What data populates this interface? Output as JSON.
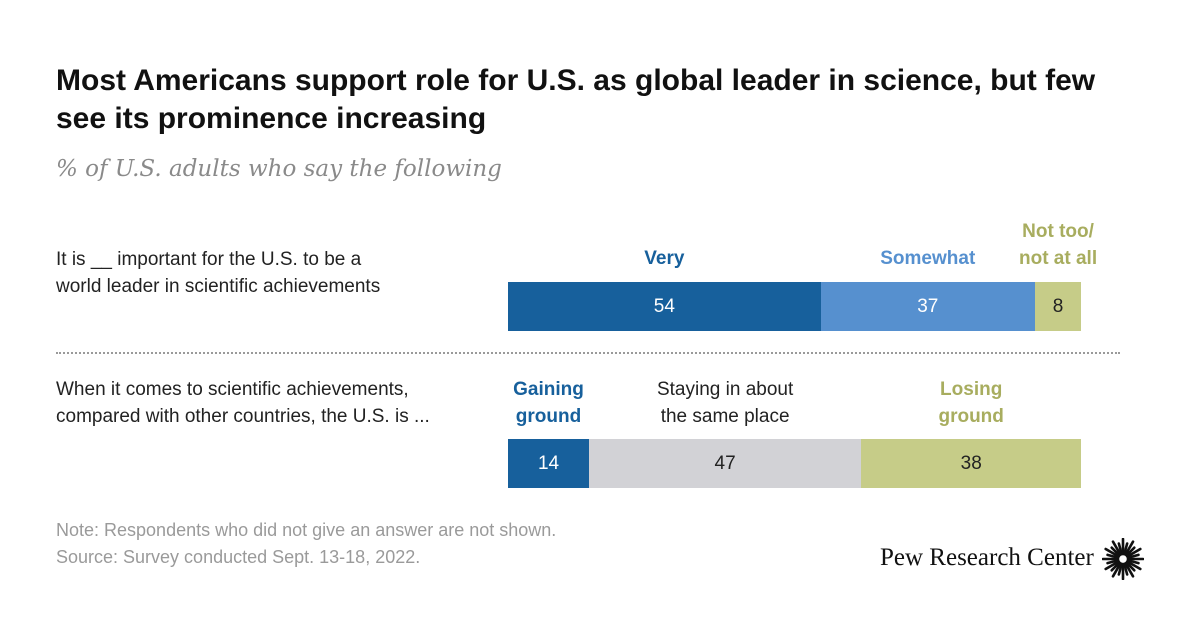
{
  "title": "Most Americans support role for U.S. as global leader in science, but few see its prominence increasing",
  "subtitle": "% of U.S. adults who say the following",
  "note": "Note: Respondents who did not give an answer are not shown.",
  "source": "Source: Survey conducted Sept. 13-18, 2022.",
  "logo_text": "Pew Research Center",
  "logo_icon": "sunburst-icon",
  "chart_data": {
    "type": "bar",
    "orientation": "horizontal",
    "stacked": true,
    "rows": [
      {
        "label": "It is __ important for the U.S. to be a\nworld leader in scientific achievements",
        "segments": [
          {
            "name": "Very",
            "value": 54,
            "color": "#17609c",
            "label_color": "#17609c",
            "text_color": "#ffffff"
          },
          {
            "name": "Somewhat",
            "value": 37,
            "color": "#5690cf",
            "label_color": "#5690cf",
            "text_color": "#ffffff"
          },
          {
            "name": "Not too/\nnot at all",
            "value": 8,
            "color": "#c6cc88",
            "label_color": "#a8ad5f",
            "text_color": "#222222"
          }
        ]
      },
      {
        "label": "When it comes to scientific achievements,\ncompared with other countries, the U.S. is ...",
        "segments": [
          {
            "name": "Gaining\nground",
            "value": 14,
            "color": "#17609c",
            "label_color": "#17609c",
            "text_color": "#ffffff"
          },
          {
            "name": "Staying in about\nthe same place",
            "value": 47,
            "color": "#d2d2d6",
            "label_color": "#222222",
            "text_color": "#222222"
          },
          {
            "name": "Losing\nground",
            "value": 38,
            "color": "#c6cc88",
            "label_color": "#a8ad5f",
            "text_color": "#222222"
          }
        ]
      }
    ]
  }
}
